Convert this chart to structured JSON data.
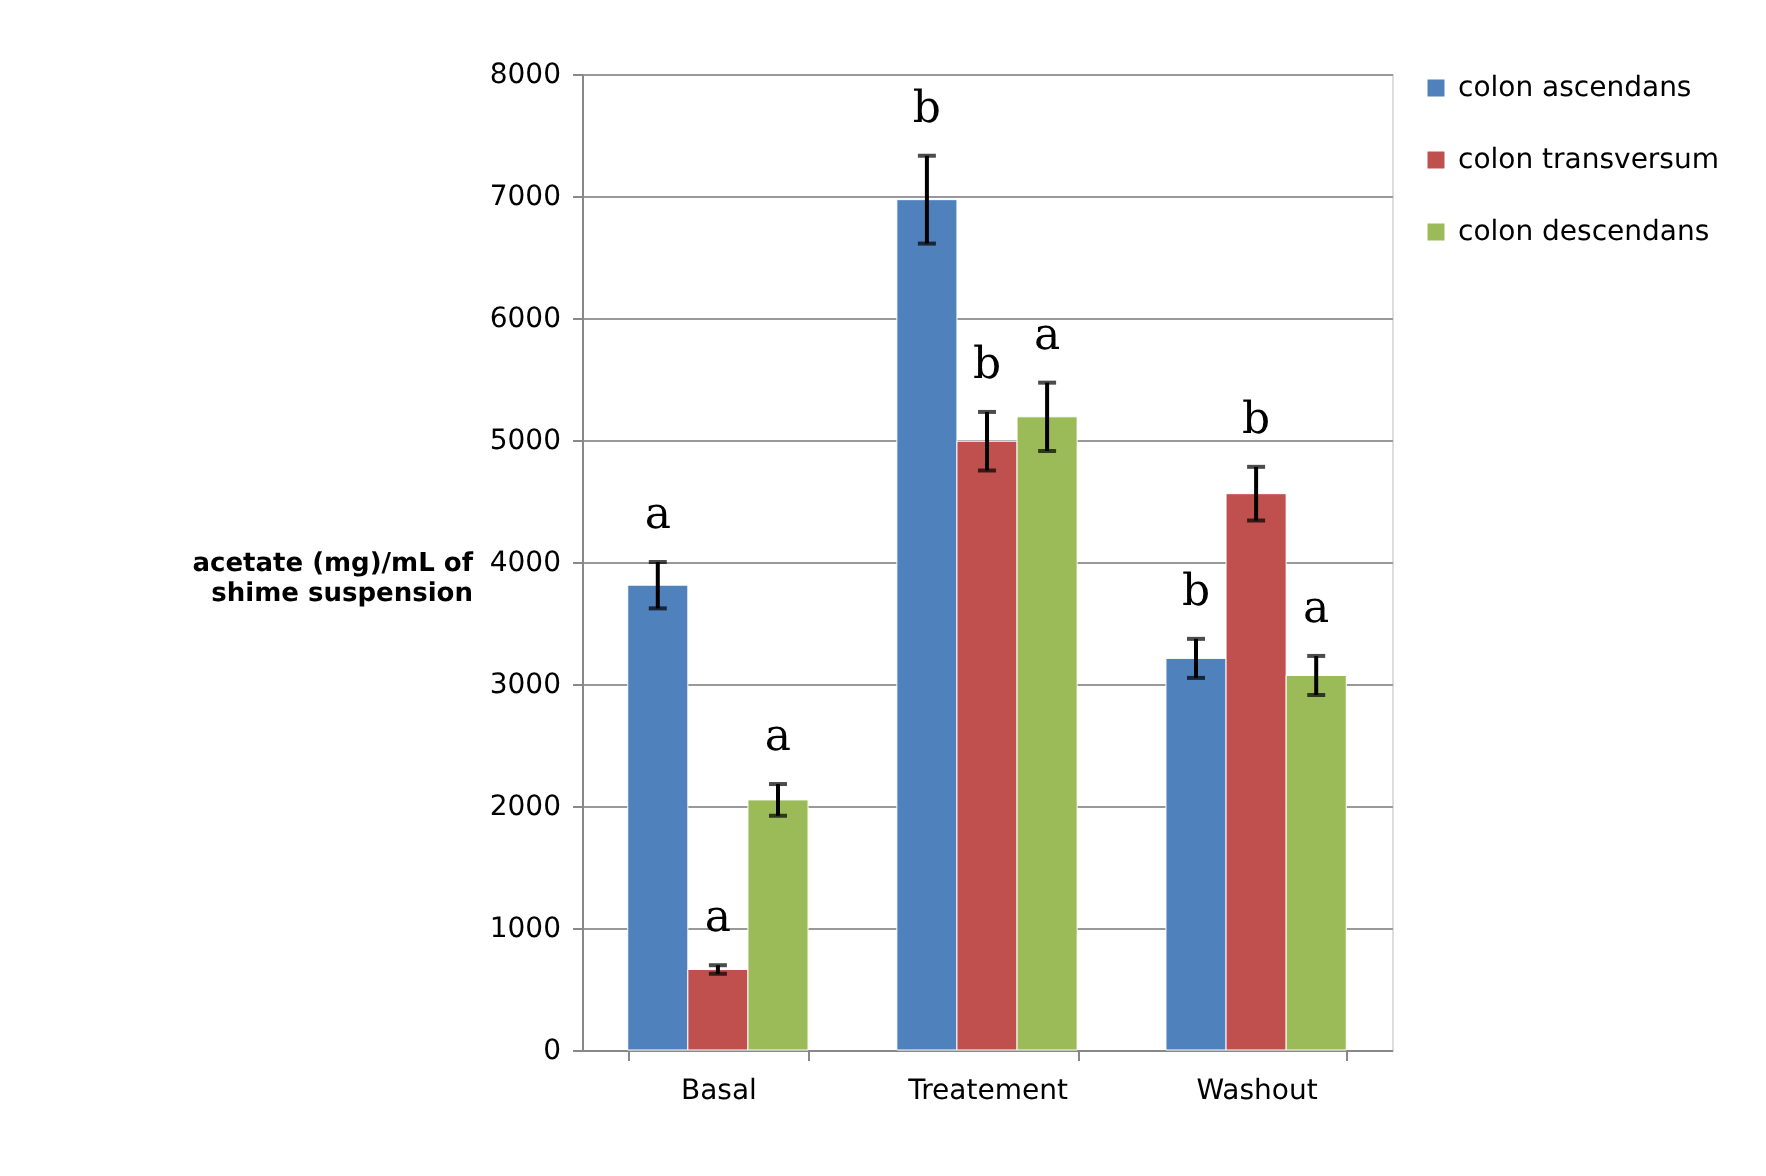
{
  "chart_data": {
    "type": "bar",
    "ylabel": "acetate (mg)/mL of\nshime suspension",
    "categories": [
      "Basal",
      "Treatement",
      "Washout"
    ],
    "series": [
      {
        "name": "colon ascendans",
        "color": "#4f81bd",
        "values": [
          3810,
          6970,
          3210
        ],
        "errors": [
          190,
          360,
          160
        ]
      },
      {
        "name": "colon transversum",
        "color": "#c0504d",
        "values": [
          660,
          4990,
          4560
        ],
        "errors": [
          35,
          240,
          220
        ]
      },
      {
        "name": "colon descendans",
        "color": "#9bbb59",
        "values": [
          2050,
          5190,
          3070
        ],
        "errors": [
          130,
          280,
          160
        ]
      }
    ],
    "annotations": [
      "a",
      "a",
      "a",
      "b",
      "b",
      "a",
      "b",
      "b",
      "a"
    ],
    "ylim": [
      0,
      8000
    ],
    "yticks": [
      0,
      1000,
      2000,
      3000,
      4000,
      5000,
      6000,
      7000,
      8000
    ],
    "grid": "y",
    "legend": "right"
  }
}
